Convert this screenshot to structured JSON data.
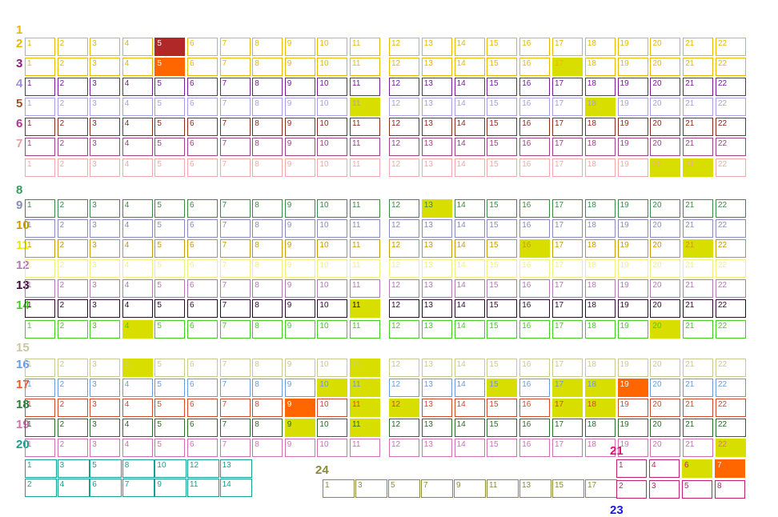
{
  "diagram": {
    "colors": {
      "yellow_fill": "#d8df00",
      "orange_fill": "#ff6600",
      "red_fill": "#b02828"
    },
    "rows": [
      {
        "label": "1",
        "color": "#e8b800",
        "cells": []
      },
      {
        "label": "2",
        "color": "#e8b800",
        "cells": [
          "1",
          "2",
          "3",
          "4",
          "5",
          "6",
          "7",
          "8",
          "9",
          "10",
          "11",
          "12",
          "13",
          "14",
          "15",
          "16",
          "17",
          "18",
          "19",
          "20",
          "21",
          "22"
        ],
        "fills": {
          "5": "red"
        }
      },
      {
        "label": "3",
        "color": "#8a1a8a",
        "cells": [
          "1",
          "2",
          "3",
          "4",
          "5",
          "6",
          "7",
          "8",
          "9",
          "10",
          "11",
          "12",
          "13",
          "14",
          "15",
          "16",
          "17",
          "18",
          "19",
          "20",
          "21",
          "22"
        ],
        "fills": {
          "5": "orange",
          "17": "yellow"
        },
        "cellColor": "#e8b800"
      },
      {
        "label": "4",
        "color": "#9b8ee0",
        "cells": [
          "1",
          "2",
          "3",
          "4",
          "5",
          "6",
          "7",
          "8",
          "9",
          "10",
          "11",
          "12",
          "13",
          "14",
          "15",
          "16",
          "17",
          "18",
          "19",
          "20",
          "21",
          "22"
        ],
        "cellColor": "#7a1a9a"
      },
      {
        "label": "5",
        "color": "#a0522d",
        "cells": [
          "1",
          "2",
          "3",
          "4",
          "5",
          "6",
          "7",
          "8",
          "9",
          "10",
          "11",
          "12",
          "13",
          "14",
          "15",
          "16",
          "17",
          "18",
          "19",
          "20",
          "21",
          "22"
        ],
        "fills": {
          "11": "yellow",
          "18": "yellow"
        },
        "cellColor": "#a89ce8"
      },
      {
        "label": "6",
        "color": "#b03a8a",
        "cells": [
          "1",
          "2",
          "3",
          "4",
          "5",
          "6",
          "7",
          "8",
          "9",
          "10",
          "11",
          "12",
          "13",
          "14",
          "15",
          "16",
          "17",
          "18",
          "19",
          "20",
          "21",
          "22"
        ],
        "cellColor": "#8b2a1a"
      },
      {
        "label": "7",
        "color": "#e8a0a0",
        "cells": [
          "1",
          "2",
          "3",
          "4",
          "5",
          "6",
          "7",
          "8",
          "9",
          "10",
          "11",
          "12",
          "13",
          "14",
          "15",
          "16",
          "17",
          "18",
          "19",
          "20",
          "21",
          "22"
        ],
        "cellColor": "#a0408a"
      },
      {
        "label": "",
        "color": "#e8a0a0",
        "cells": [
          "1",
          "2",
          "3",
          "4",
          "5",
          "6",
          "7",
          "8",
          "9",
          "10",
          "11",
          "12",
          "13",
          "14",
          "15",
          "16",
          "17",
          "18",
          "19",
          "20",
          "21",
          "22"
        ],
        "fills": {
          "20": "yellow",
          "21": "yellow"
        },
        "cellColor": "#f0a8a8"
      },
      {
        "label": "8",
        "color": "#3a9a5a",
        "cells": []
      },
      {
        "label": "9",
        "color": "#8a8ab8",
        "cells": [
          "1",
          "2",
          "3",
          "4",
          "5",
          "6",
          "7",
          "8",
          "9",
          "10",
          "11",
          "12",
          "13",
          "14",
          "15",
          "16",
          "17",
          "18",
          "19",
          "20",
          "21",
          "22"
        ],
        "fills": {
          "13": "yellow"
        },
        "cellColor": "#3a8a4a"
      },
      {
        "label": "10",
        "color": "#c89a00",
        "cells": [
          "1",
          "2",
          "3",
          "4",
          "5",
          "6",
          "7",
          "8",
          "9",
          "10",
          "11",
          "12",
          "13",
          "14",
          "15",
          "16",
          "17",
          "18",
          "19",
          "20",
          "21",
          "22"
        ],
        "cellColor": "#8a8ab8"
      },
      {
        "label": "11",
        "color": "#e8e800",
        "cells": [
          "1",
          "2",
          "3",
          "4",
          "5",
          "6",
          "7",
          "8",
          "9",
          "10",
          "11",
          "12",
          "13",
          "14",
          "15",
          "16",
          "17",
          "18",
          "19",
          "20",
          "21",
          "22"
        ],
        "fills": {
          "16": "yellow",
          "21": "yellow"
        },
        "cellColor": "#c89a00"
      },
      {
        "label": "12",
        "color": "#b07ab0",
        "cells": [
          "1",
          "2",
          "3",
          "4",
          "5",
          "6",
          "7",
          "8",
          "9",
          "10",
          "11",
          "12",
          "13",
          "14",
          "15",
          "16",
          "17",
          "18",
          "19",
          "20",
          "21",
          "22"
        ],
        "cellColor": "#f0f080"
      },
      {
        "label": "13",
        "color": "#3a0a3a",
        "cells": [
          "1",
          "2",
          "3",
          "4",
          "5",
          "6",
          "7",
          "8",
          "9",
          "10",
          "11",
          "12",
          "13",
          "14",
          "15",
          "16",
          "17",
          "18",
          "19",
          "20",
          "21",
          "22"
        ],
        "cellColor": "#b07ab0"
      },
      {
        "label": "14",
        "color": "#44cc22",
        "cells": [
          "1",
          "2",
          "3",
          "4",
          "5",
          "6",
          "7",
          "8",
          "9",
          "10",
          "11",
          "12",
          "13",
          "14",
          "15",
          "16",
          "17",
          "18",
          "19",
          "20",
          "21",
          "22"
        ],
        "fills": {
          "11": "yellow"
        },
        "cellColor": "#2a0a2a"
      },
      {
        "label": "",
        "color": "#44cc22",
        "cells": [
          "1",
          "2",
          "3",
          "4",
          "5",
          "6",
          "7",
          "8",
          "9",
          "10",
          "11",
          "12",
          "13",
          "14",
          "15",
          "16",
          "17",
          "18",
          "19",
          "20",
          "21",
          "22"
        ],
        "fills": {
          "4": "yellow",
          "20": "yellow"
        },
        "cellColor": "#44cc22"
      },
      {
        "label": "15",
        "color": "#c8c8a0",
        "cells": []
      },
      {
        "label": "16",
        "color": "#6a9ae0",
        "cells": [
          "1",
          "2",
          "3",
          "4",
          "5",
          "6",
          "7",
          "8",
          "9",
          "10",
          "11",
          "12",
          "13",
          "14",
          "15",
          "16",
          "17",
          "18",
          "19",
          "20",
          "21",
          "22"
        ],
        "fills": {
          "4": "yellow",
          "11": "yellow"
        },
        "cellColor": "#c8c890"
      },
      {
        "label": "17",
        "color": "#e05a2a",
        "cells": [
          "1",
          "2",
          "3",
          "4",
          "5",
          "6",
          "7",
          "8",
          "9",
          "10",
          "11",
          "12",
          "13",
          "14",
          "15",
          "16",
          "17",
          "18",
          "19",
          "20",
          "21",
          "22"
        ],
        "fills": {
          "10": "yellow",
          "11": "yellow",
          "15": "yellow",
          "17": "yellow",
          "18": "yellow",
          "19": "orange"
        },
        "cellColor": "#6a9ae0"
      },
      {
        "label": "18",
        "color": "#2a7a3a",
        "cells": [
          "1",
          "2",
          "3",
          "4",
          "5",
          "6",
          "7",
          "8",
          "9",
          "10",
          "11",
          "12",
          "13",
          "14",
          "15",
          "16",
          "17",
          "18",
          "19",
          "20",
          "21",
          "22"
        ],
        "fills": {
          "9": "orange",
          "11": "yellow",
          "12": "yellow",
          "17": "yellow",
          "18": "yellow"
        },
        "cellColor": "#d04a2a"
      },
      {
        "label": "19",
        "color": "#d070b0",
        "cells": [
          "1",
          "2",
          "3",
          "4",
          "5",
          "6",
          "7",
          "8",
          "9",
          "10",
          "11",
          "12",
          "13",
          "14",
          "15",
          "16",
          "17",
          "18",
          "19",
          "20",
          "21",
          "22"
        ],
        "fills": {
          "9": "yellow",
          "11": "yellow"
        },
        "cellColor": "#2a6a2a"
      },
      {
        "label": "20",
        "color": "#1aa090",
        "cells": [
          "1",
          "2",
          "3",
          "4",
          "5",
          "6",
          "7",
          "8",
          "9",
          "10",
          "11",
          "12",
          "13",
          "14",
          "15",
          "16",
          "17",
          "18",
          "19",
          "20",
          "21",
          "22"
        ],
        "fills": {
          "22": "yellow"
        },
        "cellColor": "#d070b0"
      }
    ],
    "bottom_left_top": [
      "1",
      "3",
      "5",
      "8",
      "10",
      "12",
      "13"
    ],
    "bottom_left_bottom": [
      "2",
      "4",
      "6",
      "7",
      "9",
      "11",
      "14"
    ],
    "label_24": "24",
    "bottom_mid": [
      "1",
      "3",
      "5",
      "7",
      "9",
      "11",
      "13",
      "15",
      "17"
    ],
    "label_21": "21",
    "bottom_right_top": [
      "1",
      "4",
      "6",
      "7"
    ],
    "bottom_right_bottom": [
      "2",
      "3",
      "5",
      "8"
    ],
    "label_23": "23"
  }
}
